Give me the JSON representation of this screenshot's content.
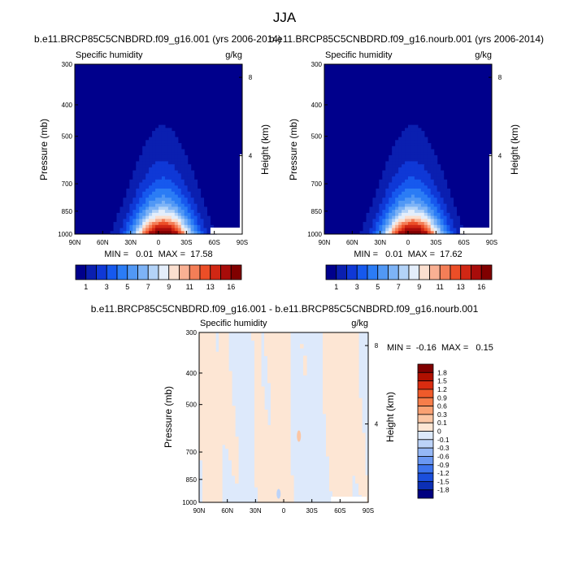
{
  "figure": {
    "title": "JJA"
  },
  "chart_data": [
    {
      "type": "heatmap",
      "title": "b.e11.BRCP85C5CNBDRD.f09_g16.001 (yrs 2006-2014)",
      "left_label": "Specific humidity",
      "right_label": "g/kg",
      "ylabel": "Pressure (mb)",
      "ylabel_right": "Height (km)",
      "x_ticks": [
        "90N",
        "60N",
        "30N",
        "0",
        "30S",
        "60S",
        "90S"
      ],
      "y_ticks": [
        "300",
        "400",
        "500",
        "700",
        "850",
        "1000"
      ],
      "y_tick_values": [
        300,
        400,
        500,
        700,
        850,
        1000
      ],
      "height_ticks": [
        "8",
        "4"
      ],
      "stats": "MIN =   0.01  MAX =  17.58",
      "min": 0.01,
      "max": 17.58,
      "colorbar_labels": [
        "1",
        "3",
        "5",
        "7",
        "9",
        "11",
        "13",
        "16"
      ],
      "levels": [
        1,
        2,
        3,
        4,
        5,
        6,
        7,
        8,
        9,
        10,
        11,
        12,
        13,
        14,
        16
      ],
      "colors": [
        "#00008c",
        "#0a1fb0",
        "#0f38d6",
        "#1659ee",
        "#2b7cf5",
        "#5198f5",
        "#7db3f6",
        "#b3d3f8",
        "#e4eefb",
        "#fbdfcf",
        "#f9b093",
        "#f47e57",
        "#ec4e27",
        "#d12714",
        "#a80c0a",
        "#800000"
      ]
    },
    {
      "type": "heatmap",
      "title": "b.e11.BRCP85C5CNBDRD.f09_g16.nourb.001 (yrs 2006-2014)",
      "left_label": "Specific humidity",
      "right_label": "g/kg",
      "ylabel": "Pressure (mb)",
      "ylabel_right": "Height (km)",
      "x_ticks": [
        "90N",
        "60N",
        "30N",
        "0",
        "30S",
        "60S",
        "90S"
      ],
      "y_ticks": [
        "300",
        "400",
        "500",
        "700",
        "850",
        "1000"
      ],
      "y_tick_values": [
        300,
        400,
        500,
        700,
        850,
        1000
      ],
      "height_ticks": [
        "8",
        "4"
      ],
      "stats": "MIN =   0.01  MAX =  17.62",
      "min": 0.01,
      "max": 17.62,
      "colorbar_labels": [
        "1",
        "3",
        "5",
        "7",
        "9",
        "11",
        "13",
        "16"
      ],
      "levels": [
        1,
        2,
        3,
        4,
        5,
        6,
        7,
        8,
        9,
        10,
        11,
        12,
        13,
        14,
        16
      ],
      "colors": [
        "#00008c",
        "#0a1fb0",
        "#0f38d6",
        "#1659ee",
        "#2b7cf5",
        "#5198f5",
        "#7db3f6",
        "#b3d3f8",
        "#e4eefb",
        "#fbdfcf",
        "#f9b093",
        "#f47e57",
        "#ec4e27",
        "#d12714",
        "#a80c0a",
        "#800000"
      ]
    },
    {
      "type": "heatmap",
      "title": "b.e11.BRCP85C5CNBDRD.f09_g16.001 - b.e11.BRCP85C5CNBDRD.f09_g16.nourb.001",
      "left_label": "Specific humidity",
      "right_label": "g/kg",
      "ylabel": "Pressure (mb)",
      "ylabel_right": "Height (km)",
      "x_ticks": [
        "90N",
        "60N",
        "30N",
        "0",
        "30S",
        "60S",
        "90S"
      ],
      "y_ticks": [
        "300",
        "400",
        "500",
        "700",
        "850",
        "1000"
      ],
      "y_tick_values": [
        300,
        400,
        500,
        700,
        850,
        1000
      ],
      "height_ticks": [
        "8",
        "4"
      ],
      "stats": "MIN =  -0.16  MAX =   0.15",
      "min": -0.16,
      "max": 0.15,
      "colorbar_labels": [
        "1.8",
        "1.5",
        "1.2",
        "0.9",
        "0.6",
        "0.3",
        "0.1",
        "0",
        "-0.1",
        "-0.3",
        "-0.6",
        "-0.9",
        "-1.2",
        "-1.5",
        "-1.8"
      ],
      "colors": [
        "#800000",
        "#b01000",
        "#d92c10",
        "#ef5a2a",
        "#f67d4a",
        "#f9a173",
        "#fbc6a4",
        "#fde6d4",
        "#dde9fb",
        "#bcd3f8",
        "#95b8f6",
        "#6a98f3",
        "#3d74ee",
        "#1b4fdc",
        "#0c2fb5",
        "#000080"
      ]
    }
  ]
}
